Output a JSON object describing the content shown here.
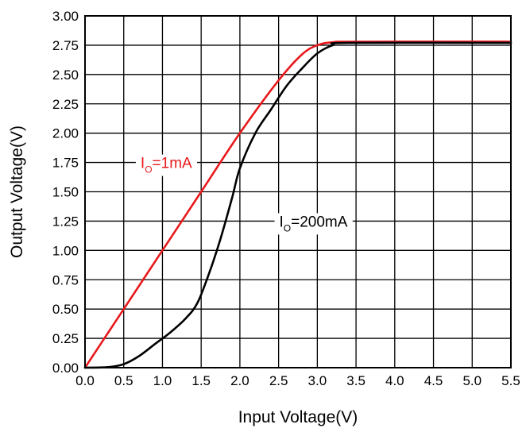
{
  "chart_data": {
    "type": "line",
    "title": "",
    "xlabel": "Input Voltage(V)",
    "ylabel": "Output Voltage(V)",
    "xlim": [
      0,
      5.5
    ],
    "ylim": [
      0,
      3.0
    ],
    "x_ticks": [
      "0.0",
      "0.5",
      "1.0",
      "1.5",
      "2.0",
      "2.5",
      "3.0",
      "3.5",
      "4.0",
      "4.5",
      "5.0",
      "5.5"
    ],
    "y_ticks": [
      "0.00",
      "0.25",
      "0.50",
      "0.75",
      "1.00",
      "1.25",
      "1.50",
      "1.75",
      "2.00",
      "2.25",
      "2.50",
      "2.75",
      "3.00"
    ],
    "grid": true,
    "legend": "none",
    "series": [
      {
        "color": "#e8191c",
        "points": [
          [
            0,
            0
          ],
          [
            0.5,
            0.5
          ],
          [
            1.0,
            1.0
          ],
          [
            1.5,
            1.5
          ],
          [
            2.0,
            2.0
          ],
          [
            2.5,
            2.45
          ],
          [
            2.8,
            2.67
          ],
          [
            3.0,
            2.75
          ],
          [
            3.2,
            2.775
          ],
          [
            3.5,
            2.78
          ],
          [
            5.5,
            2.78
          ]
        ]
      },
      {
        "color": "#000000",
        "points": [
          [
            0,
            0
          ],
          [
            0.3,
            0.005
          ],
          [
            0.5,
            0.03
          ],
          [
            0.7,
            0.1
          ],
          [
            0.9,
            0.2
          ],
          [
            1.1,
            0.3
          ],
          [
            1.3,
            0.42
          ],
          [
            1.45,
            0.55
          ],
          [
            1.6,
            0.8
          ],
          [
            1.75,
            1.1
          ],
          [
            1.9,
            1.45
          ],
          [
            2.0,
            1.7
          ],
          [
            2.2,
            2.0
          ],
          [
            2.4,
            2.2
          ],
          [
            2.6,
            2.4
          ],
          [
            2.8,
            2.55
          ],
          [
            3.0,
            2.68
          ],
          [
            3.2,
            2.75
          ],
          [
            3.4,
            2.77
          ],
          [
            5.5,
            2.77
          ]
        ]
      }
    ],
    "annotations": [
      {
        "main": "I",
        "sub": "O",
        "rest": "=1mA",
        "color": "#e8191c",
        "x": 1.05,
        "y": 1.75
      },
      {
        "main": "I",
        "sub": "O",
        "rest": "=200mA",
        "color": "#000000",
        "x": 2.95,
        "y": 1.25
      }
    ]
  }
}
